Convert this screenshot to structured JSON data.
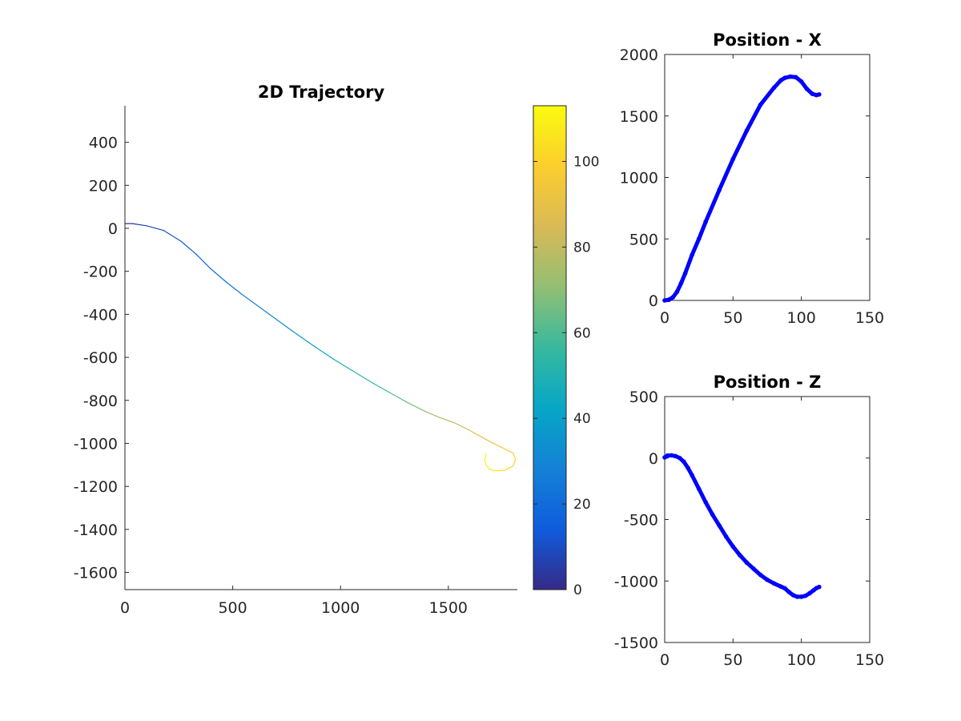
{
  "chart_data": [
    {
      "id": "trajectory",
      "type": "line",
      "title": "2D Trajectory",
      "xlabel": "",
      "ylabel": "",
      "xlim": [
        0,
        1820
      ],
      "ylim": [
        -1680,
        570
      ],
      "xticks": [
        0,
        500,
        1000,
        1500
      ],
      "yticks": [
        400,
        200,
        0,
        -200,
        -400,
        -600,
        -800,
        -1000,
        -1200,
        -1400,
        -1600
      ],
      "box": false,
      "grid": false,
      "colormap": "parula",
      "color_by": "time",
      "points": [
        {
          "t": 0,
          "x": 2,
          "y": 22
        },
        {
          "t": 4,
          "x": 35,
          "y": 22
        },
        {
          "t": 7,
          "x": 100,
          "y": 12
        },
        {
          "t": 10,
          "x": 180,
          "y": -10
        },
        {
          "t": 13,
          "x": 260,
          "y": -60
        },
        {
          "t": 16,
          "x": 330,
          "y": -120
        },
        {
          "t": 19,
          "x": 400,
          "y": -190
        },
        {
          "t": 22,
          "x": 470,
          "y": -250
        },
        {
          "t": 25,
          "x": 540,
          "y": -305
        },
        {
          "t": 30,
          "x": 670,
          "y": -400
        },
        {
          "t": 35,
          "x": 780,
          "y": -480
        },
        {
          "t": 40,
          "x": 880,
          "y": -550
        },
        {
          "t": 45,
          "x": 970,
          "y": -610
        },
        {
          "t": 50,
          "x": 1060,
          "y": -665
        },
        {
          "t": 55,
          "x": 1150,
          "y": -720
        },
        {
          "t": 60,
          "x": 1230,
          "y": -765
        },
        {
          "t": 65,
          "x": 1310,
          "y": -810
        },
        {
          "t": 70,
          "x": 1390,
          "y": -850
        },
        {
          "t": 75,
          "x": 1460,
          "y": -880
        },
        {
          "t": 80,
          "x": 1530,
          "y": -905
        },
        {
          "t": 85,
          "x": 1600,
          "y": -940
        },
        {
          "t": 90,
          "x": 1680,
          "y": -985
        },
        {
          "t": 94,
          "x": 1750,
          "y": -1020
        },
        {
          "t": 97,
          "x": 1800,
          "y": -1045
        },
        {
          "t": 99,
          "x": 1812,
          "y": -1075
        },
        {
          "t": 101,
          "x": 1800,
          "y": -1105
        },
        {
          "t": 103,
          "x": 1760,
          "y": -1125
        },
        {
          "t": 105,
          "x": 1715,
          "y": -1128
        },
        {
          "t": 107,
          "x": 1690,
          "y": -1120
        },
        {
          "t": 109,
          "x": 1675,
          "y": -1100
        },
        {
          "t": 111,
          "x": 1668,
          "y": -1075
        },
        {
          "t": 113,
          "x": 1675,
          "y": -1048
        }
      ]
    },
    {
      "id": "colorbar",
      "type": "heatmap",
      "clim": [
        0,
        113
      ],
      "ticks": [
        0,
        20,
        40,
        60,
        80,
        100
      ]
    },
    {
      "id": "position-x",
      "type": "scatter",
      "title": "Position - X",
      "xlabel": "",
      "ylabel": "",
      "xlim": [
        0,
        150
      ],
      "ylim": [
        0,
        2000
      ],
      "xticks": [
        0,
        50,
        100,
        150
      ],
      "yticks": [
        0,
        500,
        1000,
        1500,
        2000
      ],
      "box": true,
      "color": "#0000ff",
      "points": [
        {
          "t": 0,
          "v": 0
        },
        {
          "t": 3,
          "v": 5
        },
        {
          "t": 6,
          "v": 25
        },
        {
          "t": 9,
          "v": 70
        },
        {
          "t": 12,
          "v": 140
        },
        {
          "t": 15,
          "v": 220
        },
        {
          "t": 20,
          "v": 370
        },
        {
          "t": 25,
          "v": 500
        },
        {
          "t": 30,
          "v": 640
        },
        {
          "t": 40,
          "v": 900
        },
        {
          "t": 50,
          "v": 1150
        },
        {
          "t": 60,
          "v": 1380
        },
        {
          "t": 70,
          "v": 1590
        },
        {
          "t": 80,
          "v": 1730
        },
        {
          "t": 85,
          "v": 1790
        },
        {
          "t": 88,
          "v": 1810
        },
        {
          "t": 92,
          "v": 1820
        },
        {
          "t": 96,
          "v": 1815
        },
        {
          "t": 100,
          "v": 1780
        },
        {
          "t": 104,
          "v": 1720
        },
        {
          "t": 108,
          "v": 1680
        },
        {
          "t": 111,
          "v": 1670
        },
        {
          "t": 113,
          "v": 1675
        }
      ]
    },
    {
      "id": "position-z",
      "type": "scatter",
      "title": "Position - Z",
      "xlabel": "",
      "ylabel": "",
      "xlim": [
        0,
        150
      ],
      "ylim": [
        -1500,
        500
      ],
      "xticks": [
        0,
        50,
        100,
        150
      ],
      "yticks": [
        500,
        0,
        -500,
        -1000,
        -1500
      ],
      "box": true,
      "color": "#0000ff",
      "points": [
        {
          "t": 0,
          "v": 5
        },
        {
          "t": 2,
          "v": 20
        },
        {
          "t": 5,
          "v": 22
        },
        {
          "t": 8,
          "v": 15
        },
        {
          "t": 11,
          "v": 0
        },
        {
          "t": 14,
          "v": -30
        },
        {
          "t": 17,
          "v": -80
        },
        {
          "t": 20,
          "v": -140
        },
        {
          "t": 25,
          "v": -250
        },
        {
          "t": 30,
          "v": -360
        },
        {
          "t": 35,
          "v": -460
        },
        {
          "t": 40,
          "v": -550
        },
        {
          "t": 45,
          "v": -640
        },
        {
          "t": 50,
          "v": -720
        },
        {
          "t": 55,
          "v": -790
        },
        {
          "t": 60,
          "v": -850
        },
        {
          "t": 65,
          "v": -900
        },
        {
          "t": 70,
          "v": -950
        },
        {
          "t": 75,
          "v": -990
        },
        {
          "t": 80,
          "v": -1020
        },
        {
          "t": 85,
          "v": -1045
        },
        {
          "t": 88,
          "v": -1060
        },
        {
          "t": 91,
          "v": -1090
        },
        {
          "t": 94,
          "v": -1115
        },
        {
          "t": 97,
          "v": -1128
        },
        {
          "t": 100,
          "v": -1128
        },
        {
          "t": 103,
          "v": -1120
        },
        {
          "t": 106,
          "v": -1100
        },
        {
          "t": 109,
          "v": -1075
        },
        {
          "t": 111,
          "v": -1058
        },
        {
          "t": 113,
          "v": -1048
        }
      ]
    }
  ]
}
